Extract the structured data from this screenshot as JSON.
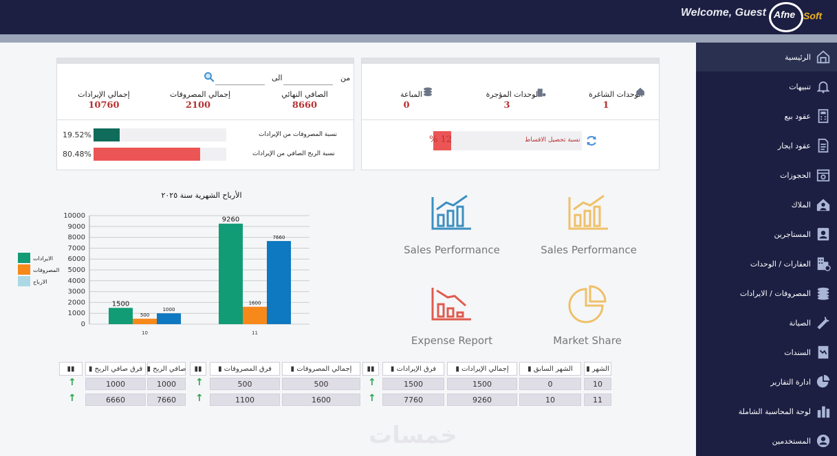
{
  "header": {
    "welcome": "Welcome, Guest",
    "logo_text": "Afne",
    "logo_soft": "Soft"
  },
  "sidebar": {
    "items": [
      {
        "label": "الرئيسية",
        "icon": "home-icon"
      },
      {
        "label": "تنبيهات",
        "icon": "bell-icon"
      },
      {
        "label": "عقود بيع",
        "icon": "calculator-icon"
      },
      {
        "label": "عقود ايجار",
        "icon": "document-icon"
      },
      {
        "label": "الحجوزات",
        "icon": "calendar-icon"
      },
      {
        "label": "الملاك",
        "icon": "owner-house-icon"
      },
      {
        "label": "المستاجرين",
        "icon": "tenant-icon"
      },
      {
        "label": "العقارات / الوحدات",
        "icon": "buildings-icon"
      },
      {
        "label": "المصروفات / الايرادات",
        "icon": "coins-icon"
      },
      {
        "label": "الصيانة",
        "icon": "wrench-icon"
      },
      {
        "label": "السندات",
        "icon": "voucher-icon"
      },
      {
        "label": "ادارة التقارير",
        "icon": "pie-chart-icon"
      },
      {
        "label": "لوحة المحاسبة الشاملة",
        "icon": "bar-chart-icon"
      },
      {
        "label": "المستخدمين",
        "icon": "user-icon"
      }
    ]
  },
  "units_card": {
    "vacant_label": "الوحدات الشاغرة",
    "vacant_value": "1",
    "rented_label": "الوحدات المؤجرة",
    "rented_value": "3",
    "sold_label": "المباعة",
    "sold_value": "0",
    "collection_label": "نسبة تحصيل الاقساط",
    "collection_value": "% 12",
    "collection_fraction": 0.12
  },
  "finance_card": {
    "from_label": "من",
    "to_label": "الى",
    "net_label": "الصافي النهائي",
    "net_value": "8660",
    "expenses_label": "إجمالي المصروفات",
    "expenses_value": "2100",
    "revenue_label": "إجمالي الإيرادات",
    "revenue_value": "10760",
    "ratio_exp_label": "نسبة المصروفات من الإيرادات",
    "ratio_exp_value": "19.52%",
    "ratio_exp_fraction": 0.1952,
    "ratio_profit_label": "نسبة الربح الصافي من الإيرادات",
    "ratio_profit_value": "80.48%",
    "ratio_profit_fraction": 0.8048,
    "colors": {
      "exp": "#0f6b5a",
      "profit": "#ec5555"
    }
  },
  "tiles": [
    {
      "label": "Sales Performance",
      "icon": "sales-performance-blue-icon"
    },
    {
      "label": "Sales Performance",
      "icon": "sales-performance-gold-icon"
    },
    {
      "label": "Expense Report",
      "icon": "expense-report-icon"
    },
    {
      "label": "Market Share",
      "icon": "market-share-icon"
    }
  ],
  "chart_data": {
    "type": "bar",
    "title": "الأرباح الشهرية سنة ٢٠٢٥",
    "categories": [
      "10",
      "11"
    ],
    "series": [
      {
        "name": "الايرادات",
        "values": [
          1500,
          9260
        ],
        "color": "#119c76"
      },
      {
        "name": "المصروفات",
        "values": [
          500,
          1600
        ],
        "color": "#f7881a"
      },
      {
        "name": "الارباح",
        "values": [
          1000,
          7660
        ],
        "color": "#0e78c0"
      }
    ],
    "legend_colors": [
      "#119c76",
      "#f7881a",
      "#acd8e6"
    ],
    "yticks": [
      "0",
      "1000",
      "2000",
      "3000",
      "4000",
      "5000",
      "6000",
      "7000",
      "8000",
      "9000",
      "10000"
    ],
    "ylim": [
      0,
      10000
    ],
    "grid": true,
    "legend_position": "left"
  },
  "table": {
    "headers": [
      "الشهر",
      "الشهر السابق",
      "إجمالي الإيرادات",
      "فرق الإيرادات",
      "",
      "إجمالي المصروفات",
      "فرق المصروفات",
      "",
      "صافي الربح",
      "فرق صافي الربح",
      ""
    ],
    "rows": [
      [
        "10",
        "0",
        "1500",
        "1500",
        "↑",
        "500",
        "500",
        "↑",
        "1000",
        "1000",
        "↑"
      ],
      [
        "11",
        "10",
        "9260",
        "7760",
        "↑",
        "1600",
        "1100",
        "↑",
        "7660",
        "6660",
        "↑"
      ]
    ]
  },
  "watermark": "خمسات"
}
